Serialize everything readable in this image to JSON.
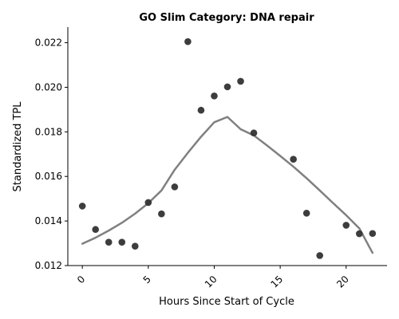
{
  "chart_data": {
    "type": "scatter",
    "title": "GO Slim Category: DNA repair",
    "xlabel": "Hours Since Start of Cycle",
    "ylabel": "Standardized TPL",
    "xlim": [
      -1.1,
      23.1
    ],
    "ylim": [
      0.012,
      0.0227
    ],
    "xticks": [
      0,
      5,
      10,
      15,
      20
    ],
    "xtick_labels": [
      "0",
      "5",
      "10",
      "15",
      "20"
    ],
    "yticks": [
      0.012,
      0.014,
      0.016,
      0.018,
      0.02,
      0.022
    ],
    "ytick_labels": [
      "0.012",
      "0.014",
      "0.016",
      "0.018",
      "0.020",
      "0.022"
    ],
    "grid": false,
    "colors": {
      "points": "#333333",
      "trend": "#808080"
    },
    "series": [
      {
        "kind": "scatter",
        "x": [
          0,
          1,
          2,
          3,
          4,
          5,
          6,
          7,
          8,
          9,
          10,
          11,
          12,
          13,
          16,
          17,
          18,
          20,
          21,
          22
        ],
        "y": [
          0.01467,
          0.01362,
          0.01305,
          0.01305,
          0.01287,
          0.01483,
          0.01432,
          0.01553,
          0.02205,
          0.01897,
          0.01961,
          0.02002,
          0.02027,
          0.01795,
          0.01677,
          0.01435,
          0.01245,
          0.01381,
          0.01343,
          0.01344
        ]
      },
      {
        "kind": "line",
        "x": [
          0,
          1,
          2,
          3,
          4,
          5,
          6,
          7,
          8,
          9,
          10,
          11,
          12,
          13,
          14,
          15,
          16,
          17,
          18,
          19,
          20,
          21,
          22
        ],
        "y": [
          0.01298,
          0.01325,
          0.01357,
          0.01392,
          0.01433,
          0.0148,
          0.01537,
          0.0163,
          0.01706,
          0.01778,
          0.01843,
          0.01867,
          0.01812,
          0.01784,
          0.01739,
          0.01692,
          0.01644,
          0.01592,
          0.01537,
          0.01481,
          0.01426,
          0.01367,
          0.01257
        ]
      }
    ]
  }
}
